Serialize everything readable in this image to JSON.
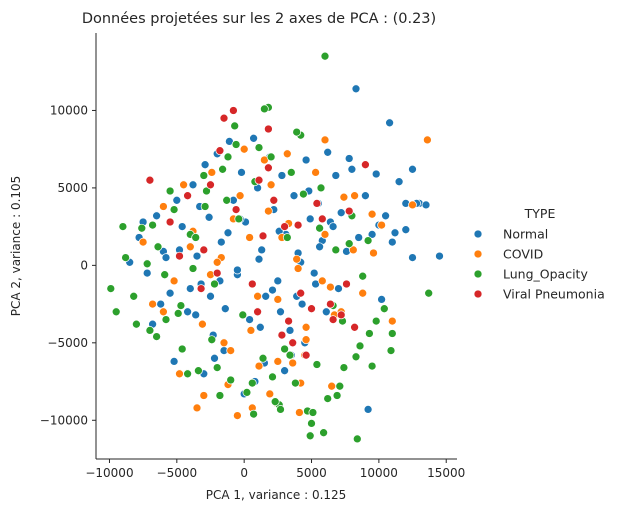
{
  "chart_data": {
    "type": "scatter",
    "title": "Données projetées sur les 2 axes de PCA : (0.23)",
    "xlabel": "PCA 1, variance : 0.125",
    "ylabel": "PCA 2, variance : 0.105",
    "xlim": [
      -11000,
      15800
    ],
    "ylim": [
      -12500,
      15000
    ],
    "xticks": [
      -10000,
      -5000,
      0,
      5000,
      10000,
      15000
    ],
    "xtick_labels": [
      "−10000",
      "−5000",
      "0",
      "5000",
      "10000",
      "15000"
    ],
    "yticks": [
      -10000,
      -5000,
      0,
      5000,
      10000
    ],
    "ytick_labels": [
      "−10000",
      "−5000",
      "0",
      "5000",
      "10000"
    ],
    "grid": false,
    "legend": {
      "title": "TYPE",
      "placement": "right",
      "entries": [
        "Normal",
        "COVID",
        "Lung_Opacity",
        "Viral Pneumonia"
      ]
    },
    "series": [
      {
        "name": "Normal",
        "color": "#1f77b4",
        "x": [
          -8500,
          -7800,
          -7200,
          -6500,
          -6000,
          -5500,
          -5000,
          -4600,
          -4200,
          -3800,
          -3500,
          -3200,
          -2900,
          -2600,
          -2300,
          -2000,
          -1700,
          -1400,
          -1100,
          -800,
          -500,
          -200,
          100,
          400,
          700,
          1000,
          1300,
          1600,
          1900,
          2200,
          2500,
          2800,
          3100,
          3400,
          3700,
          4000,
          4300,
          4600,
          4900,
          5200,
          5500,
          5800,
          6100,
          6400,
          6800,
          7200,
          7600,
          8000,
          8500,
          9000,
          9500,
          10000,
          10500,
          11000,
          11500,
          12000,
          12500,
          13000,
          13500,
          14500,
          8300,
          10800,
          6200,
          7800,
          -6800,
          -5200,
          -3000,
          -1500,
          0,
          1500,
          3000,
          4500,
          -4000,
          -2500,
          -500,
          1200,
          2700,
          4200,
          5600,
          7000,
          -7500,
          -6200,
          -4800,
          -3300,
          -1800,
          -300,
          1100,
          2600,
          3900,
          5300,
          6600,
          -2200,
          800,
          3500,
          -5800,
          -3600,
          -1200,
          2100,
          4800,
          9200,
          11200,
          12500,
          10200,
          9800,
          12000,
          12800
        ],
        "y": [
          200,
          1800,
          -500,
          3200,
          900,
          -1800,
          4200,
          2500,
          -3000,
          5200,
          600,
          -1200,
          6500,
          3100,
          -4500,
          7200,
          1500,
          -2800,
          8000,
          4200,
          -600,
          6000,
          2800,
          -3500,
          8200,
          5000,
          1000,
          -2000,
          7000,
          3600,
          -1000,
          5800,
          2000,
          -4200,
          4500,
          800,
          -2500,
          6800,
          3000,
          -500,
          4000,
          1600,
          -3000,
          2800,
          5800,
          3400,
          900,
          6200,
          1800,
          4500,
          2000,
          2600,
          3200,
          1500,
          5400,
          4000,
          6200,
          4000,
          3900,
          600,
          11400,
          9200,
          7300,
          6900,
          -3800,
          -6200,
          -7000,
          -5500,
          -8300,
          -6300,
          -6800,
          -5000,
          -1500,
          -2000,
          -300,
          -4000,
          -3000,
          200,
          1200,
          -1500,
          2800,
          -2500,
          1000,
          3800,
          -1000,
          3000,
          400,
          2200,
          -2000,
          -1200,
          2500,
          -6000,
          -7500,
          -5800,
          500,
          -3200,
          2100,
          -1600,
          4800,
          -9300,
          2100,
          500,
          -2200,
          5900,
          2300,
          4000
        ]
      },
      {
        "name": "COVID",
        "color": "#ff7f0e",
        "x": [
          -7500,
          -6800,
          -6000,
          -5200,
          -4500,
          -3800,
          -3100,
          -2400,
          -1700,
          -1000,
          -300,
          400,
          1100,
          1800,
          2500,
          3200,
          3900,
          4600,
          5300,
          6000,
          6700,
          7400,
          8100,
          8800,
          9500,
          10200,
          11000,
          12500,
          13600,
          -4800,
          -3000,
          -1200,
          600,
          2400,
          4200,
          -2000,
          0,
          2000,
          4000,
          6000,
          -6000,
          -4000,
          -2500,
          -800,
          1000,
          2800,
          4600,
          6400,
          8200,
          -1500,
          500,
          2500,
          4500,
          6500,
          3300,
          5800,
          7200,
          9600,
          1500,
          3600,
          -500,
          1900,
          4100,
          -3500
        ],
        "y": [
          1500,
          -2500,
          3800,
          -1000,
          5200,
          2200,
          -3800,
          6000,
          500,
          -5500,
          4500,
          1800,
          -6500,
          3500,
          -2200,
          7200,
          400,
          -4800,
          6000,
          2000,
          -3200,
          4400,
          1000,
          -1800,
          3300,
          2600,
          -3600,
          3900,
          8100,
          -7000,
          -8400,
          -7700,
          -9200,
          -8900,
          -7600,
          200,
          7500,
          5200,
          -200,
          8100,
          -3000,
          1200,
          -600,
          3000,
          -2000,
          1800,
          -4000,
          -1400,
          4500,
          -5000,
          -4200,
          -6200,
          -5800,
          -7800,
          2700,
          -1000,
          -3000,
          800,
          6800,
          -6300,
          -9700,
          -8300,
          -9500,
          -9200
        ]
      },
      {
        "name": "Lung_Opacity",
        "color": "#2ca02c",
        "x": [
          -9900,
          -9500,
          -8800,
          -8200,
          -7600,
          -7000,
          -6400,
          -5800,
          -5200,
          -4600,
          -4000,
          -3400,
          -2800,
          -2200,
          -1600,
          -1000,
          -400,
          200,
          800,
          1400,
          2000,
          2600,
          3200,
          3800,
          4400,
          5000,
          5600,
          6200,
          6800,
          7400,
          8000,
          8600,
          9200,
          9800,
          10400,
          11000,
          13700,
          6000,
          8400,
          -9000,
          -8000,
          -6500,
          -5500,
          -4200,
          -3000,
          -1800,
          -600,
          600,
          1800,
          3000,
          4200,
          5400,
          6600,
          7800,
          -7200,
          -5900,
          -4700,
          -3600,
          -2400,
          -1300,
          -100,
          1100,
          2300,
          3500,
          4700,
          5900,
          7100,
          8300,
          9500,
          1500,
          -2000,
          2700,
          4900,
          -4900,
          -2900,
          700,
          5700,
          9300,
          10900,
          -6800,
          -3800,
          -700,
          3400,
          6900,
          8800,
          2100,
          3900,
          -1200,
          5100,
          7300
        ],
        "y": [
          -1500,
          -3000,
          500,
          -2000,
          2400,
          -4200,
          1200,
          -3500,
          3600,
          -5400,
          2000,
          -6800,
          4800,
          -1200,
          6200,
          -7400,
          3000,
          -8200,
          5400,
          -6000,
          7000,
          -9000,
          1800,
          -7600,
          4600,
          -10200,
          2400,
          -8600,
          1000,
          -6600,
          3200,
          -5200,
          1600,
          -3600,
          -2800,
          -4400,
          -1800,
          13500,
          -11200,
          2500,
          -3800,
          -4600,
          4800,
          -7000,
          5800,
          -8400,
          7800,
          -7600,
          10200,
          -5400,
          8400,
          -6400,
          -2600,
          1400,
          100,
          -600,
          -2600,
          1800,
          -4800,
          4200,
          -3200,
          7600,
          -8800,
          6000,
          -9400,
          -10800,
          -7800,
          -5900,
          -6500,
          10100,
          -6600,
          -9300,
          -11000,
          -3100,
          3800,
          -9600,
          5000,
          -4400,
          -5500,
          2600,
          -200,
          9000,
          -5800,
          -8400,
          -700,
          -7200,
          8600,
          7000,
          -9500,
          -3600
        ]
      },
      {
        "name": "Viral Pneumonia",
        "color": "#d62728",
        "x": [
          -7000,
          -5500,
          -4200,
          -3000,
          -1800,
          -600,
          600,
          1800,
          3000,
          4200,
          5400,
          6600,
          7800,
          9000,
          -1500,
          1800,
          -2500,
          -800,
          1000,
          2800,
          4600,
          6400,
          8200,
          3600,
          5000,
          7200,
          -4800,
          -3200,
          2200,
          4000,
          5800,
          7600,
          1400,
          3300,
          -2000,
          1100
        ],
        "y": [
          5500,
          2800,
          4500,
          1000,
          7400,
          3600,
          -1200,
          6300,
          2500,
          -1800,
          4000,
          -3500,
          3500,
          6500,
          9500,
          8800,
          5200,
          10000,
          -3000,
          -4500,
          -5800,
          -2500,
          -4000,
          -5000,
          -2800,
          -3200,
          600,
          -1500,
          4200,
          2600,
          3000,
          -1200,
          1900,
          -3600,
          -500,
          5500
        ]
      }
    ]
  }
}
